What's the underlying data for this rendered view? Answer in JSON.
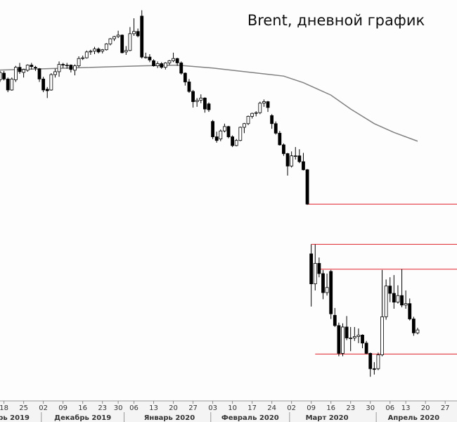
{
  "chart_data": {
    "type": "candlestick",
    "title": "Brent, дневной график",
    "open": [
      61.9,
      62.3,
      63.2,
      62.4,
      60.9,
      62.3,
      64.0,
      63.3,
      63.6,
      64.3,
      64.0,
      63.8,
      62.4,
      61.0,
      60.9,
      63.0,
      63.4,
      64.4,
      64.3,
      64.3,
      63.6,
      64.2,
      65.2,
      65.3,
      66.1,
      66.2,
      66.5,
      66.2,
      66.4,
      67.2,
      67.9,
      68.2,
      68.4,
      66.1,
      66.3,
      68.6,
      68.9,
      71.0,
      65.4,
      65.4,
      64.9,
      64.2,
      64.5,
      64.0,
      64.6,
      64.9,
      65.2,
      64.6,
      63.2,
      62.0,
      60.7,
      59.3,
      59.5,
      59.8,
      59.0,
      56.6,
      54.5,
      54.2,
      55.3,
      55.9,
      54.5,
      53.3,
      54.0,
      55.8,
      56.3,
      57.3,
      57.7,
      57.8,
      59.1,
      59.3,
      57.4,
      56.3,
      55.0,
      53.4,
      52.2,
      50.5,
      51.8,
      51.9,
      51.1,
      50.0,
      38.5,
      34.4,
      37.2,
      35.8,
      33.2,
      36.1,
      30.1,
      28.7,
      24.9,
      28.5,
      27.0,
      27.0,
      27.2,
      27.4,
      26.3,
      24.9,
      22.8,
      22.8,
      24.7,
      29.9,
      34.1,
      33.1,
      31.9,
      32.8,
      31.5,
      31.7,
      29.6,
      27.7
    ],
    "high": [
      62.6,
      63.5,
      63.5,
      62.6,
      62.6,
      64.2,
      64.6,
      63.8,
      64.4,
      64.6,
      64.2,
      63.9,
      62.7,
      61.3,
      63.2,
      63.8,
      64.8,
      64.6,
      64.6,
      64.4,
      64.4,
      65.5,
      65.6,
      66.3,
      66.4,
      66.8,
      66.7,
      66.5,
      67.3,
      68.0,
      68.3,
      69.0,
      68.5,
      66.9,
      69.5,
      70.7,
      69.3,
      71.8,
      66.0,
      65.8,
      65.1,
      64.8,
      64.7,
      64.7,
      65.0,
      66.0,
      65.3,
      64.8,
      63.3,
      62.4,
      60.9,
      59.8,
      60.3,
      59.9,
      59.2,
      56.8,
      55.2,
      55.5,
      56.3,
      56.0,
      54.7,
      54.2,
      55.9,
      56.4,
      57.4,
      57.8,
      58.0,
      59.3,
      59.6,
      59.4,
      57.6,
      56.6,
      55.3,
      53.6,
      52.3,
      52.5,
      53.1,
      52.8,
      52.3,
      50.1,
      39.8,
      39.8,
      38.0,
      36.3,
      35.8,
      36.3,
      31.1,
      29.1,
      29.0,
      30.0,
      28.5,
      28.5,
      28.3,
      27.5,
      26.6,
      25.0,
      23.7,
      25.0,
      36.3,
      35.0,
      35.3,
      35.6,
      34.2,
      36.4,
      33.5,
      32.4,
      29.9,
      28.4
    ],
    "low": [
      61.6,
      62.0,
      62.2,
      60.6,
      60.8,
      62.0,
      63.1,
      62.6,
      63.4,
      63.7,
      63.5,
      62.0,
      60.6,
      59.8,
      60.8,
      62.6,
      62.7,
      63.9,
      63.8,
      63.3,
      62.9,
      64.0,
      65.0,
      65.2,
      65.7,
      65.8,
      65.9,
      65.9,
      66.3,
      67.0,
      67.6,
      68.0,
      65.9,
      65.7,
      66.2,
      68.3,
      68.1,
      65.2,
      65.2,
      64.7,
      64.1,
      63.9,
      63.8,
      63.7,
      64.3,
      64.7,
      64.2,
      63.0,
      61.5,
      60.5,
      58.5,
      58.6,
      59.1,
      57.8,
      57.9,
      54.2,
      53.7,
      53.9,
      55.1,
      54.3,
      53.1,
      53.2,
      53.9,
      55.0,
      56.1,
      57.0,
      57.3,
      57.6,
      58.6,
      57.9,
      55.6,
      54.8,
      53.3,
      51.9,
      49.2,
      50.3,
      51.4,
      50.9,
      49.9,
      45.2,
      31.3,
      33.5,
      35.3,
      32.3,
      32.8,
      29.6,
      28.5,
      24.5,
      24.5,
      26.7,
      25.2,
      26.6,
      26.3,
      25.6,
      24.8,
      21.7,
      22.0,
      22.6,
      24.5,
      29.5,
      31.9,
      31.0,
      31.7,
      31.2,
      31.0,
      29.4,
      27.3,
      27.5
    ],
    "close": [
      62.3,
      63.3,
      62.4,
      60.9,
      62.4,
      64.0,
      63.4,
      63.7,
      64.3,
      64.1,
      63.9,
      62.4,
      60.9,
      60.8,
      63.0,
      63.4,
      64.4,
      64.3,
      64.3,
      63.7,
      64.2,
      65.2,
      65.3,
      66.1,
      66.2,
      66.5,
      66.1,
      66.4,
      67.2,
      67.9,
      68.2,
      68.4,
      66.0,
      66.3,
      68.6,
      68.9,
      68.3,
      65.4,
      65.4,
      65.0,
      64.2,
      64.5,
      64.0,
      64.6,
      64.9,
      65.2,
      64.6,
      63.2,
      62.0,
      60.7,
      59.3,
      59.5,
      59.8,
      58.3,
      58.2,
      54.5,
      54.0,
      55.3,
      55.9,
      54.5,
      53.3,
      54.0,
      55.8,
      56.3,
      57.3,
      57.7,
      57.8,
      59.1,
      59.3,
      58.5,
      56.3,
      55.0,
      53.4,
      52.2,
      50.5,
      51.9,
      51.9,
      51.1,
      50.0,
      45.3,
      34.4,
      37.2,
      35.8,
      33.2,
      33.9,
      30.3,
      28.7,
      24.9,
      28.5,
      27.0,
      27.0,
      27.2,
      27.4,
      26.3,
      24.9,
      22.8,
      22.7,
      24.7,
      29.9,
      34.1,
      33.1,
      31.9,
      32.8,
      31.5,
      31.7,
      29.6,
      27.7,
      28.1
    ],
    "up_color": "#ffffff",
    "down_color": "#000000",
    "ylim": [
      18.4,
      73.2
    ],
    "xlim": [
      1,
      117
    ],
    "moving_average": {
      "color": "#808080",
      "x": [
        0,
        37,
        46,
        55,
        73,
        78,
        85,
        90,
        96,
        101,
        107
      ],
      "values": [
        63.6,
        64.2,
        64.3,
        63.9,
        62.8,
        61.9,
        60.2,
        58.3,
        56.3,
        55.1,
        53.9
      ]
    },
    "level_color": "#e0202a",
    "levels": [
      {
        "value": 45.3,
        "start": 79
      },
      {
        "value": 39.8,
        "start": 80
      },
      {
        "value": 36.4,
        "start": 82
      },
      {
        "value": 24.8,
        "start": 81
      }
    ],
    "xticks": [
      {
        "value": 2,
        "label": "18"
      },
      {
        "value": 7,
        "label": "25"
      },
      {
        "value": 12,
        "label": "02"
      },
      {
        "value": 17,
        "label": "09"
      },
      {
        "value": 22,
        "label": "16"
      },
      {
        "value": 27,
        "label": "23"
      },
      {
        "value": 31,
        "label": "30"
      },
      {
        "value": 35,
        "label": "06"
      },
      {
        "value": 40,
        "label": "13"
      },
      {
        "value": 45,
        "label": "20"
      },
      {
        "value": 50,
        "label": "27"
      },
      {
        "value": 55,
        "label": "03"
      },
      {
        "value": 60,
        "label": "10"
      },
      {
        "value": 65,
        "label": "17"
      },
      {
        "value": 70,
        "label": "24"
      },
      {
        "value": 75,
        "label": "02"
      },
      {
        "value": 80,
        "label": "09"
      },
      {
        "value": 85,
        "label": "16"
      },
      {
        "value": 90,
        "label": "23"
      },
      {
        "value": 95,
        "label": "30"
      },
      {
        "value": 100,
        "label": "06"
      },
      {
        "value": 104,
        "label": "13"
      },
      {
        "value": 109,
        "label": "20"
      },
      {
        "value": 114,
        "label": "27"
      }
    ],
    "months": [
      {
        "value": 4.5,
        "start": 0,
        "label": "рь 2019"
      },
      {
        "value": 22,
        "start": 12,
        "label": "Декабрь 2019"
      },
      {
        "value": 44,
        "start": 33,
        "label": "Январь 2020"
      },
      {
        "value": 64.5,
        "start": 55,
        "label": "Февраль 2020"
      },
      {
        "value": 84,
        "start": 75,
        "label": "Март 2020"
      },
      {
        "value": 106,
        "start": 97,
        "label": "Апрель 2020"
      }
    ]
  }
}
